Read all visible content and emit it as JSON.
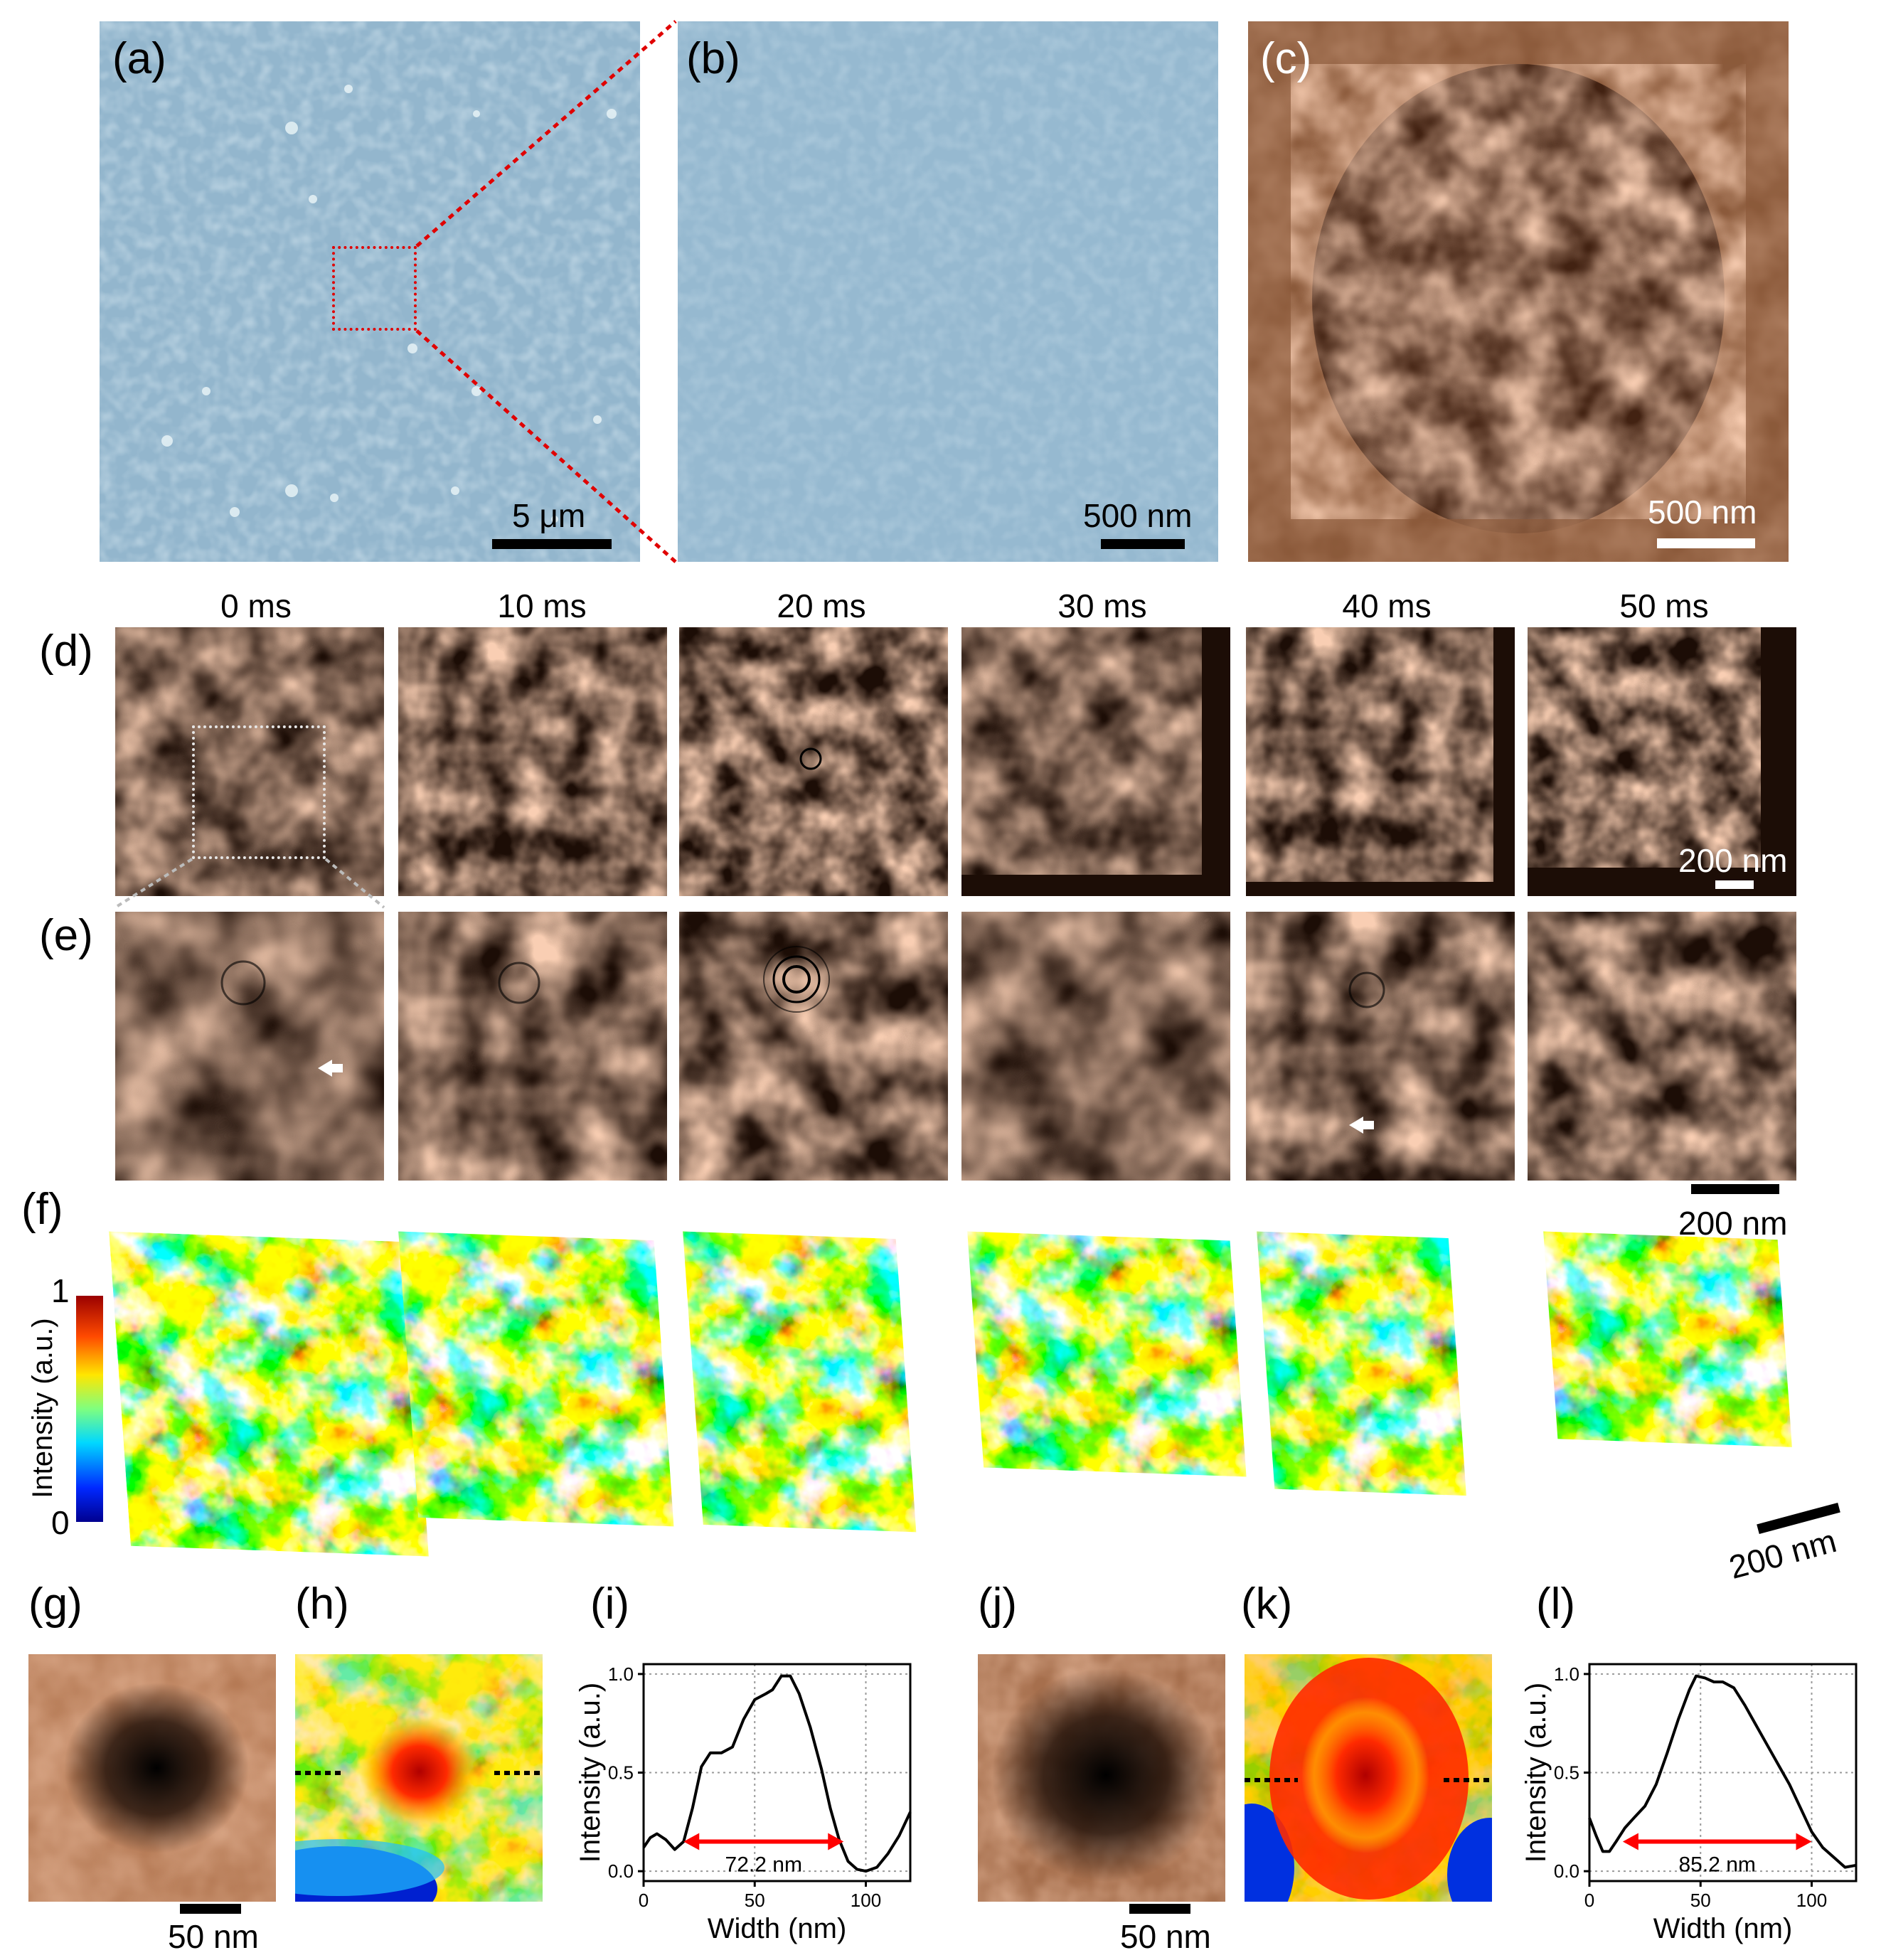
{
  "panel_labels": {
    "a": "(a)",
    "b": "(b)",
    "c": "(c)",
    "d": "(d)",
    "e": "(e)",
    "f": "(f)",
    "g": "(g)",
    "h": "(h)",
    "i": "(i)",
    "j": "(j)",
    "k": "(k)",
    "l": "(l)"
  },
  "scalebars": {
    "a": "5 μm",
    "b": "500 nm",
    "c": "500 nm",
    "d": "200 nm",
    "e": "200 nm",
    "f": "200 nm",
    "g": "50 nm",
    "j": "50 nm"
  },
  "time_labels": [
    "0 ms",
    "10 ms",
    "20 ms",
    "30 ms",
    "40 ms",
    "50 ms"
  ],
  "colorbar": {
    "label": "Intensity (a.u.)",
    "max": "1",
    "min": "0"
  },
  "colors": {
    "optical_blue": "#93b6cd",
    "copper_light": "#f2a57a",
    "copper_dark": "#1c0d06",
    "zoom_box": "#e00000",
    "arrow": "#ff0000"
  },
  "profile_i": {
    "annotation": "72.2 nm"
  },
  "profile_l": {
    "annotation": "85.2 nm"
  },
  "chart_data": [
    {
      "type": "line",
      "panel": "(i)",
      "xlabel": "Width (nm)",
      "ylabel": "Intensity (a.u.)",
      "xlim": [
        0,
        120
      ],
      "ylim": [
        -0.05,
        1.05
      ],
      "xticks": [
        "0",
        "50",
        "100"
      ],
      "yticks": [
        "0.0",
        "0.5",
        "1.0"
      ],
      "grid": true,
      "series": [
        {
          "x": [
            0,
            3,
            6,
            10,
            14,
            18,
            22,
            26,
            30,
            35,
            40,
            45,
            50,
            55,
            58,
            62,
            66,
            70,
            75,
            80,
            84,
            88,
            92,
            96,
            100,
            105,
            110,
            115,
            120
          ],
          "values": [
            0.12,
            0.17,
            0.19,
            0.16,
            0.11,
            0.15,
            0.32,
            0.53,
            0.6,
            0.6,
            0.63,
            0.77,
            0.87,
            0.9,
            0.92,
            0.99,
            0.99,
            0.9,
            0.73,
            0.52,
            0.32,
            0.16,
            0.05,
            0.01,
            0.0,
            0.02,
            0.09,
            0.18,
            0.3
          ]
        }
      ],
      "annotation": "72.2 nm"
    },
    {
      "type": "line",
      "panel": "(l)",
      "xlabel": "Width (nm)",
      "ylabel": "Intensity (a.u.)",
      "xlim": [
        0,
        120
      ],
      "ylim": [
        -0.05,
        1.05
      ],
      "xticks": [
        "0",
        "50",
        "100"
      ],
      "yticks": [
        "0.0",
        "0.5",
        "1.0"
      ],
      "grid": true,
      "series": [
        {
          "x": [
            0,
            3,
            6,
            9,
            12,
            16,
            20,
            25,
            30,
            35,
            40,
            45,
            48,
            52,
            56,
            60,
            65,
            70,
            75,
            80,
            85,
            90,
            95,
            100,
            105,
            110,
            115,
            120
          ],
          "values": [
            0.27,
            0.18,
            0.1,
            0.1,
            0.15,
            0.22,
            0.27,
            0.33,
            0.44,
            0.6,
            0.77,
            0.92,
            0.99,
            0.98,
            0.96,
            0.96,
            0.93,
            0.84,
            0.74,
            0.64,
            0.54,
            0.44,
            0.32,
            0.2,
            0.12,
            0.07,
            0.02,
            0.03
          ]
        }
      ],
      "annotation": "85.2 nm"
    }
  ]
}
